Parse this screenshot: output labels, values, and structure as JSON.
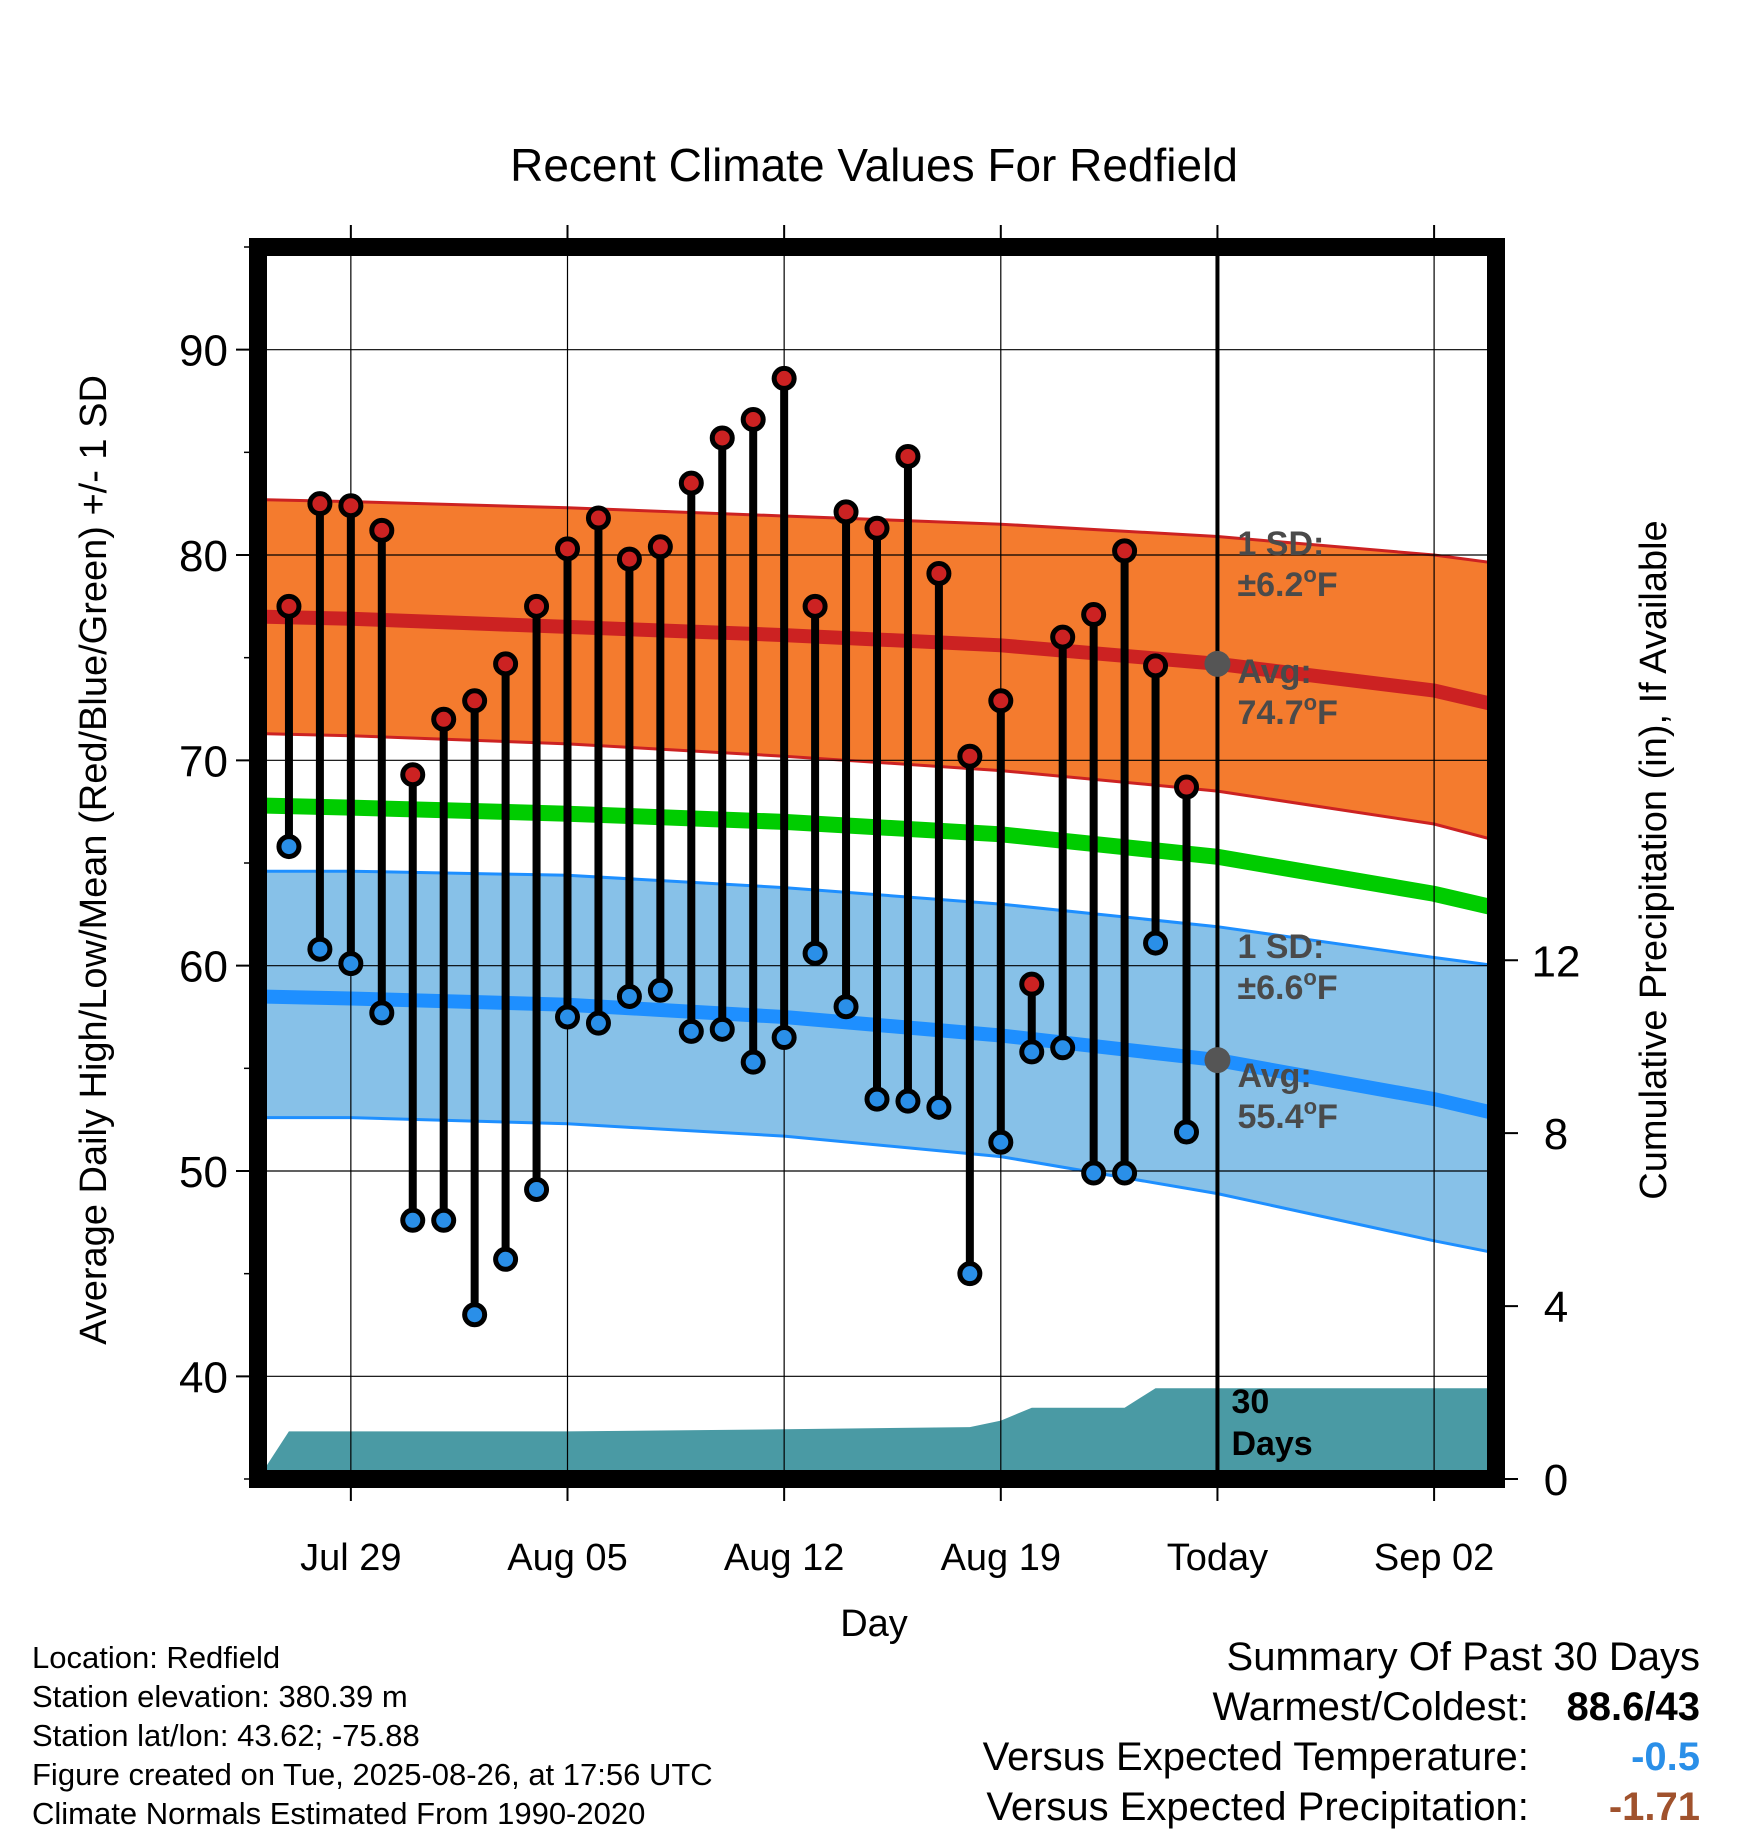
{
  "chart_data": {
    "type": "line",
    "title": "Recent Climate Values For Redfield",
    "xlabel": "Day",
    "ylabel_left": "Average Daily High/Low/Mean (Red/Blue/Green) +/- 1 SD",
    "ylabel_right": "Cumulative Precipitation (in), If Available",
    "ylim_left": [
      35,
      95
    ],
    "ylim_right": [
      0,
      28.5
    ],
    "y_ticks_left": [
      40,
      50,
      60,
      70,
      80,
      90
    ],
    "y_ticks_right": [
      0,
      4,
      8,
      12
    ],
    "x_range": [
      "2025-07-26",
      "2025-09-04"
    ],
    "x_ticks": [
      {
        "date": "2025-07-29",
        "label": "Jul 29"
      },
      {
        "date": "2025-08-05",
        "label": "Aug 05"
      },
      {
        "date": "2025-08-12",
        "label": "Aug 12"
      },
      {
        "date": "2025-08-19",
        "label": "Aug 19"
      },
      {
        "date": "2025-08-26",
        "label": "Today"
      },
      {
        "date": "2025-09-02",
        "label": "Sep 02"
      }
    ],
    "grid": true,
    "today_date": "2025-08-26",
    "normals": {
      "dates": [
        "2025-07-26",
        "2025-07-29",
        "2025-08-05",
        "2025-08-12",
        "2025-08-19",
        "2025-08-26",
        "2025-09-02",
        "2025-09-04"
      ],
      "high_mean": [
        77.0,
        76.9,
        76.5,
        76.1,
        75.6,
        74.7,
        73.4,
        72.7
      ],
      "high_upper": [
        82.7,
        82.6,
        82.3,
        81.9,
        81.5,
        80.9,
        80.0,
        79.6
      ],
      "high_lower": [
        71.3,
        71.2,
        70.8,
        70.2,
        69.5,
        68.5,
        66.9,
        66.1
      ],
      "mean": [
        67.8,
        67.7,
        67.4,
        67.0,
        66.4,
        65.3,
        63.5,
        62.8
      ],
      "low_mean": [
        58.5,
        58.4,
        58.1,
        57.5,
        56.6,
        55.4,
        53.5,
        52.8
      ],
      "low_upper": [
        64.6,
        64.6,
        64.4,
        63.8,
        63.0,
        61.9,
        60.4,
        60.0
      ],
      "low_lower": [
        52.6,
        52.6,
        52.3,
        51.7,
        50.7,
        48.9,
        46.6,
        46.0
      ]
    },
    "series": [
      {
        "name": "High",
        "color": "#cc2222",
        "x": [
          "2025-07-27",
          "2025-07-28",
          "2025-07-29",
          "2025-07-30",
          "2025-07-31",
          "2025-08-01",
          "2025-08-02",
          "2025-08-03",
          "2025-08-04",
          "2025-08-05",
          "2025-08-06",
          "2025-08-07",
          "2025-08-08",
          "2025-08-09",
          "2025-08-10",
          "2025-08-11",
          "2025-08-12",
          "2025-08-13",
          "2025-08-14",
          "2025-08-15",
          "2025-08-16",
          "2025-08-17",
          "2025-08-18",
          "2025-08-19",
          "2025-08-20",
          "2025-08-21",
          "2025-08-22",
          "2025-08-23",
          "2025-08-24",
          "2025-08-25"
        ],
        "values": [
          77.5,
          82.5,
          82.4,
          81.2,
          69.3,
          72.0,
          72.9,
          74.7,
          77.5,
          80.3,
          81.8,
          79.8,
          80.4,
          83.5,
          85.7,
          86.6,
          88.6,
          77.5,
          82.1,
          81.3,
          84.8,
          79.1,
          70.2,
          72.9,
          59.1,
          76.0,
          77.1,
          80.2,
          74.6,
          68.7
        ]
      },
      {
        "name": "Low",
        "color": "#2a8fe8",
        "x": [
          "2025-07-27",
          "2025-07-28",
          "2025-07-29",
          "2025-07-30",
          "2025-07-31",
          "2025-08-01",
          "2025-08-02",
          "2025-08-03",
          "2025-08-04",
          "2025-08-05",
          "2025-08-06",
          "2025-08-07",
          "2025-08-08",
          "2025-08-09",
          "2025-08-10",
          "2025-08-11",
          "2025-08-12",
          "2025-08-13",
          "2025-08-14",
          "2025-08-15",
          "2025-08-16",
          "2025-08-17",
          "2025-08-18",
          "2025-08-19",
          "2025-08-20",
          "2025-08-21",
          "2025-08-22",
          "2025-08-23",
          "2025-08-24",
          "2025-08-25"
        ],
        "values": [
          65.8,
          60.8,
          60.1,
          57.7,
          47.6,
          47.6,
          43.0,
          45.7,
          49.1,
          57.5,
          57.2,
          58.5,
          58.8,
          56.8,
          56.9,
          55.3,
          56.5,
          60.6,
          58.0,
          53.5,
          53.4,
          53.1,
          45.0,
          51.4,
          55.8,
          56.0,
          49.9,
          49.9,
          61.1,
          51.9
        ]
      }
    ],
    "precip": {
      "dates": [
        "2025-07-26",
        "2025-07-27",
        "2025-08-05",
        "2025-08-12",
        "2025-08-18",
        "2025-08-19",
        "2025-08-20",
        "2025-08-23",
        "2025-08-24",
        "2025-09-04"
      ],
      "values": [
        0.0,
        1.1,
        1.1,
        1.15,
        1.2,
        1.35,
        1.65,
        1.65,
        2.1,
        2.1
      ]
    },
    "annotations": {
      "high_sd_label": "1 SD:",
      "high_sd_value": "±6.2°F",
      "high_avg_label": "Avg:",
      "high_avg_value": "74.7°F",
      "low_sd_label": "1 SD:",
      "low_sd_value": "±6.6°F",
      "low_avg_label": "Avg:",
      "low_avg_value": "55.4°F",
      "days_label_1": "30",
      "days_label_2": "Days"
    },
    "colors": {
      "high_band": "#f47b2e",
      "high_line": "#cc2222",
      "mean_line": "#00cc00",
      "low_band": "#87c1e8",
      "low_line": "#1e8fff",
      "precip_fill": "#4a9aa4",
      "marker_high": "#cc2222",
      "marker_low": "#2a8fe8",
      "today_marker": "#555555"
    }
  },
  "info": {
    "location": "Location: Redfield",
    "elevation": "Station elevation: 380.39 m",
    "latlon": "Station lat/lon: 43.62; -75.88",
    "created": "Figure created on Tue, 2025-08-26, at 17:56 UTC",
    "normals": "Climate Normals Estimated From 1990-2020"
  },
  "summary": {
    "heading": "Summary Of Past 30 Days",
    "warm_cold_label": "Warmest/Coldest:",
    "warm_cold_value": "88.6/43",
    "temp_label": "Versus Expected Temperature:",
    "temp_value": "-0.5",
    "temp_color": "#2a8fe8",
    "precip_label": "Versus Expected Precipitation:",
    "precip_value": "-1.71",
    "precip_color": "#a0522d"
  }
}
